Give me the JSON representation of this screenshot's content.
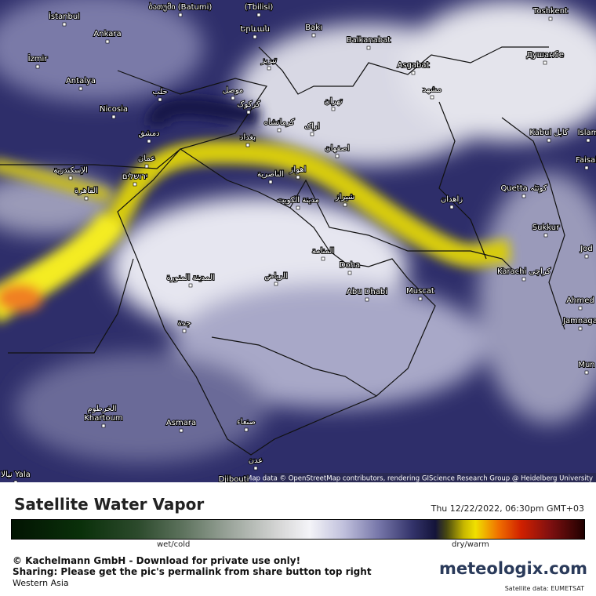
{
  "map": {
    "cities": [
      "ბათუმი (Batumi)",
      "(Tbilisi)",
      "İstanbul",
      "Ankara",
      "Երևան",
      "Bakı",
      "Balkanabat",
      "Toshkent",
      "İzmir",
      "Душанбе",
      "تبريز",
      "Asgabat",
      "Antalya",
      "حلب",
      "موصل",
      "مشهد",
      "Nicosia",
      "کرکوک",
      "تهران",
      "کرمانشاه",
      "اراک",
      "Kabul کابل",
      "Islam",
      "دمشق",
      "بغداد",
      "اصفهان",
      "عمان",
      "Faisal",
      "الإسكندرية",
      "ירושלים",
      "الناصرية",
      "اهواز",
      "Quetta کوئٹہ",
      "القاهرة",
      "مدينة الكويت",
      "شيراز",
      "زاهدان",
      "Sukkur",
      "Jod",
      "المنامة",
      "Doha",
      "Karachi کراچی",
      "المدينة المنورة",
      "الرياض",
      "Muscat",
      "Abu Dhabi",
      "Ahmed",
      "Jamnaga",
      "جدة",
      "Mun",
      "الخرطوم",
      "Khartoum",
      "Asmara",
      "صنعاء",
      "عدن",
      "Djibouti",
      "نيالا Yala"
    ],
    "attribution": "Map data © OpenStreetMap contributors, rendering GIScience Research Group @ Heidelberg University"
  },
  "footer": {
    "title": "Satellite Water Vapor",
    "datetime": "Thu 12/22/2022, 06:30pm GMT+03",
    "scale_left": "wet/cold",
    "scale_right": "dry/warm",
    "copyright": "© Kachelmann GmbH - Download for private use only!",
    "sharing": "Sharing: Please get the pic's permalink from share button top right",
    "region": "Western Asia",
    "logo": "meteologix.com",
    "source": "Satellite data: EUMETSAT"
  }
}
